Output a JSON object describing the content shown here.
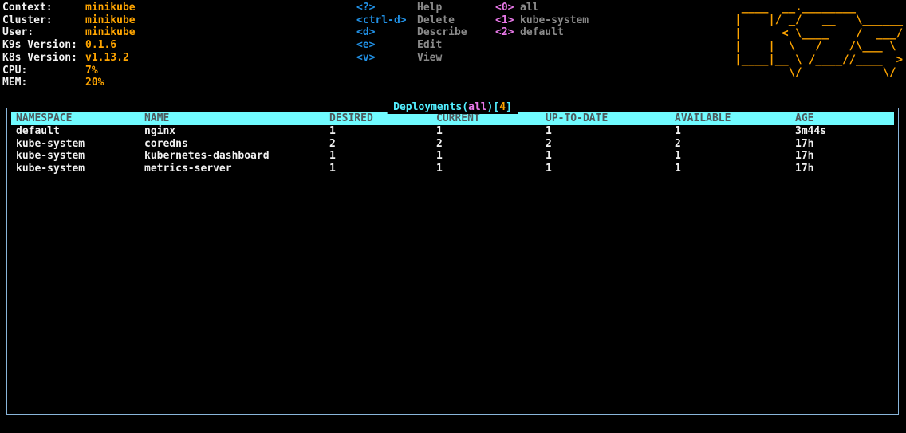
{
  "cluster_info": {
    "rows": [
      {
        "label": "Context:",
        "value": "minikube"
      },
      {
        "label": "Cluster:",
        "value": "minikube"
      },
      {
        "label": "User:",
        "value": "minikube"
      },
      {
        "label": "K9s Version:",
        "value": "0.1.6"
      },
      {
        "label": "K8s Version:",
        "value": "v1.13.2"
      },
      {
        "label": "CPU:",
        "value": "7%"
      },
      {
        "label": "MEM:",
        "value": "20%"
      }
    ]
  },
  "menu": {
    "commands": [
      {
        "key": "<?>",
        "label": "Help"
      },
      {
        "key": "<ctrl-d>",
        "label": "Delete"
      },
      {
        "key": "<d>",
        "label": "Describe"
      },
      {
        "key": "<e>",
        "label": "Edit"
      },
      {
        "key": "<v>",
        "label": "View"
      }
    ],
    "namespaces": [
      {
        "key": "<0>",
        "label": "all"
      },
      {
        "key": "<1>",
        "label": "kube-system"
      },
      {
        "key": "<2>",
        "label": "default"
      }
    ]
  },
  "logo_ascii": " ____  __.________\n|    |/ _/   __   \\______\n|      < \\____    /  ___/\n|    |  \\   /    /\\___ \\ \n|____|__ \\ /____//____  >\n        \\/            \\/ ",
  "panel": {
    "title_prefix": "Deployments(",
    "title_namespace": "all",
    "title_mid": ")[",
    "title_count": "4",
    "title_suffix": "]"
  },
  "table": {
    "headers": [
      "NAMESPACE",
      "NAME",
      "DESIRED",
      "CURRENT",
      "UP-TO-DATE",
      "AVAILABLE",
      "AGE"
    ],
    "rows": [
      [
        "default",
        "nginx",
        "1",
        "1",
        "1",
        "1",
        "3m44s"
      ],
      [
        "kube-system",
        "coredns",
        "2",
        "2",
        "2",
        "2",
        "17h"
      ],
      [
        "kube-system",
        "kubernetes-dashboard",
        "1",
        "1",
        "1",
        "1",
        "17h"
      ],
      [
        "kube-system",
        "metrics-server",
        "1",
        "1",
        "1",
        "1",
        "17h"
      ]
    ]
  },
  "colors": {
    "accent_orange": "#ffa500",
    "key_blue": "#2191e6",
    "key_magenta": "#e878e8",
    "muted_gray": "#8a8a8a",
    "title_cyan": "#52eeff",
    "table_header_bg": "#70fbff",
    "table_header_text": "#4e585c",
    "panel_border_blue": "#89b5da",
    "row_text": "#f0f0f0"
  }
}
